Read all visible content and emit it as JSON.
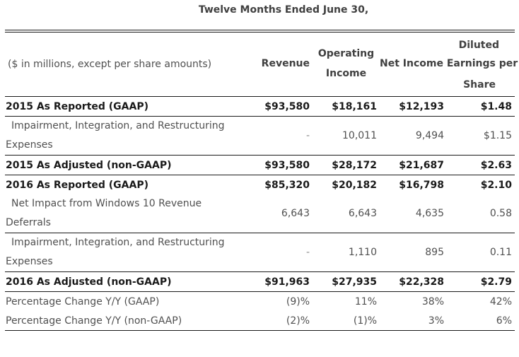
{
  "title": "Twelve Months Ended June 30,",
  "header": {
    "label": "($ in millions, except per share amounts)",
    "revenue": "Revenue",
    "operating_income_1": "Operating",
    "operating_income_2": "Income",
    "net_income_eps_1": "Diluted",
    "net_income_eps_2": "Net Income Earnings per",
    "net_income_eps_3": "Share"
  },
  "rows": [
    {
      "label": "2015 As Reported (GAAP)",
      "revenue": "$93,580",
      "operating_income": "$18,161",
      "net_income": "$12,193",
      "eps": "$1.48"
    },
    {
      "label_line1": "Impairment, Integration, and Restructuring",
      "label_line2": "Expenses",
      "revenue": "-",
      "operating_income": "10,011",
      "net_income": "9,494",
      "eps": "$1.15"
    },
    {
      "label": "2015 As Adjusted (non-GAAP)",
      "revenue": "$93,580",
      "operating_income": "$28,172",
      "net_income": "$21,687",
      "eps": "$2.63"
    },
    {
      "label": "2016 As Reported (GAAP)",
      "revenue": "$85,320",
      "operating_income": "$20,182",
      "net_income": "$16,798",
      "eps": "$2.10"
    },
    {
      "label_line1": "Net Impact from Windows 10 Revenue",
      "label_line2": "Deferrals",
      "revenue": "6,643",
      "operating_income": "6,643",
      "net_income": "4,635",
      "eps": "0.58"
    },
    {
      "label_line1": "Impairment, Integration, and Restructuring",
      "label_line2": "Expenses",
      "revenue": "-",
      "operating_income": "1,110",
      "net_income": "895",
      "eps": "0.11"
    },
    {
      "label": "2016 As Adjusted (non-GAAP)",
      "revenue": "$91,963",
      "operating_income": "$27,935",
      "net_income": "$22,328",
      "eps": "$2.79"
    },
    {
      "label": "Percentage Change Y/Y (GAAP)",
      "revenue": "(9)%",
      "operating_income": "11%",
      "net_income": "38%",
      "eps": "42%"
    },
    {
      "label": "Percentage Change Y/Y (non-GAAP)",
      "revenue": "(2)%",
      "operating_income": "(1)%",
      "net_income": "3%",
      "eps": "6%"
    }
  ]
}
